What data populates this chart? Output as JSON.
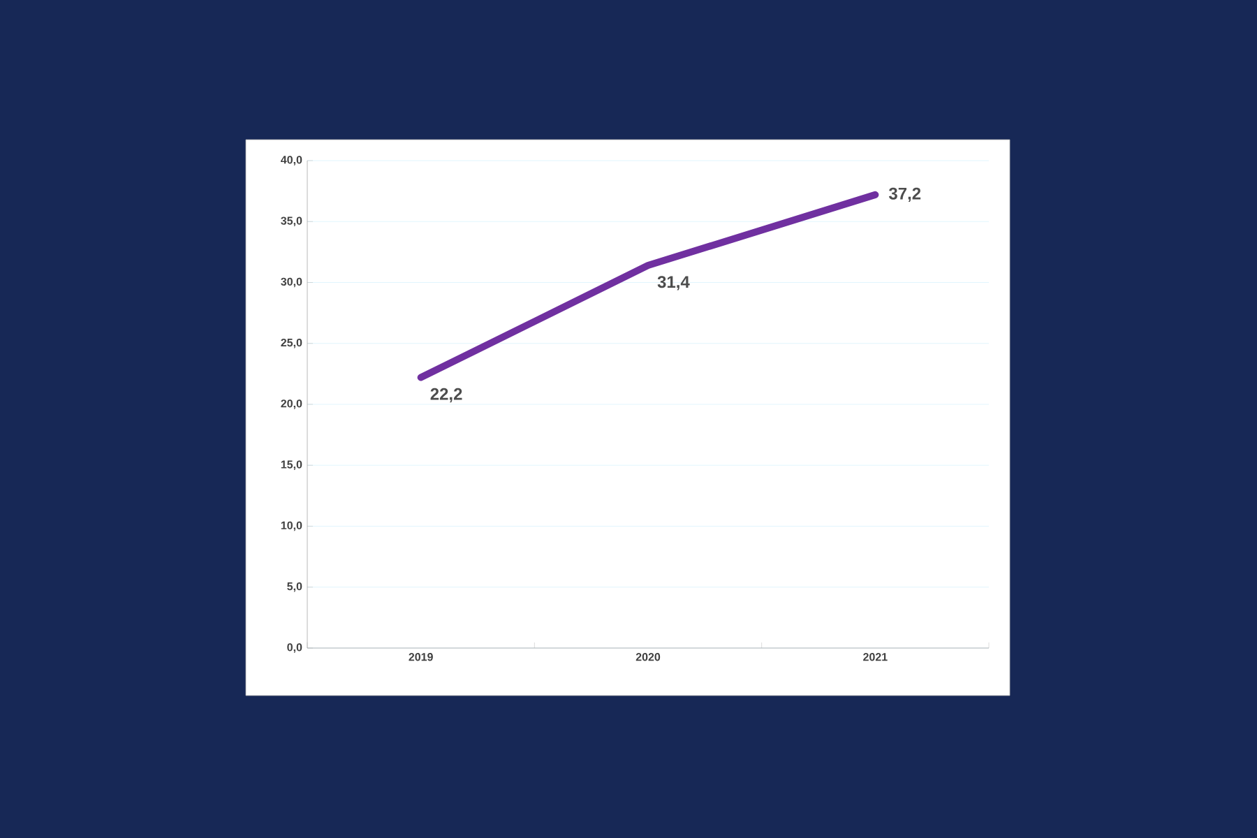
{
  "chart_data": {
    "type": "line",
    "categories": [
      "2019",
      "2020",
      "2021"
    ],
    "series": [
      {
        "color": "#7030a0",
        "values": [
          22.2,
          31.4,
          37.2
        ],
        "value_labels": [
          "22,2",
          "31,4",
          "37,2"
        ]
      }
    ],
    "ylim": [
      0,
      40
    ],
    "yticks": [
      {
        "value": 0,
        "label": "0,0"
      },
      {
        "value": 5,
        "label": "5,0"
      },
      {
        "value": 10,
        "label": "10,0"
      },
      {
        "value": 15,
        "label": "15,0"
      },
      {
        "value": 20,
        "label": "20,0"
      },
      {
        "value": 25,
        "label": "25,0"
      },
      {
        "value": 30,
        "label": "30,0"
      },
      {
        "value": 35,
        "label": "35,0"
      },
      {
        "value": 40,
        "label": "40,0"
      }
    ],
    "grid": "y"
  }
}
